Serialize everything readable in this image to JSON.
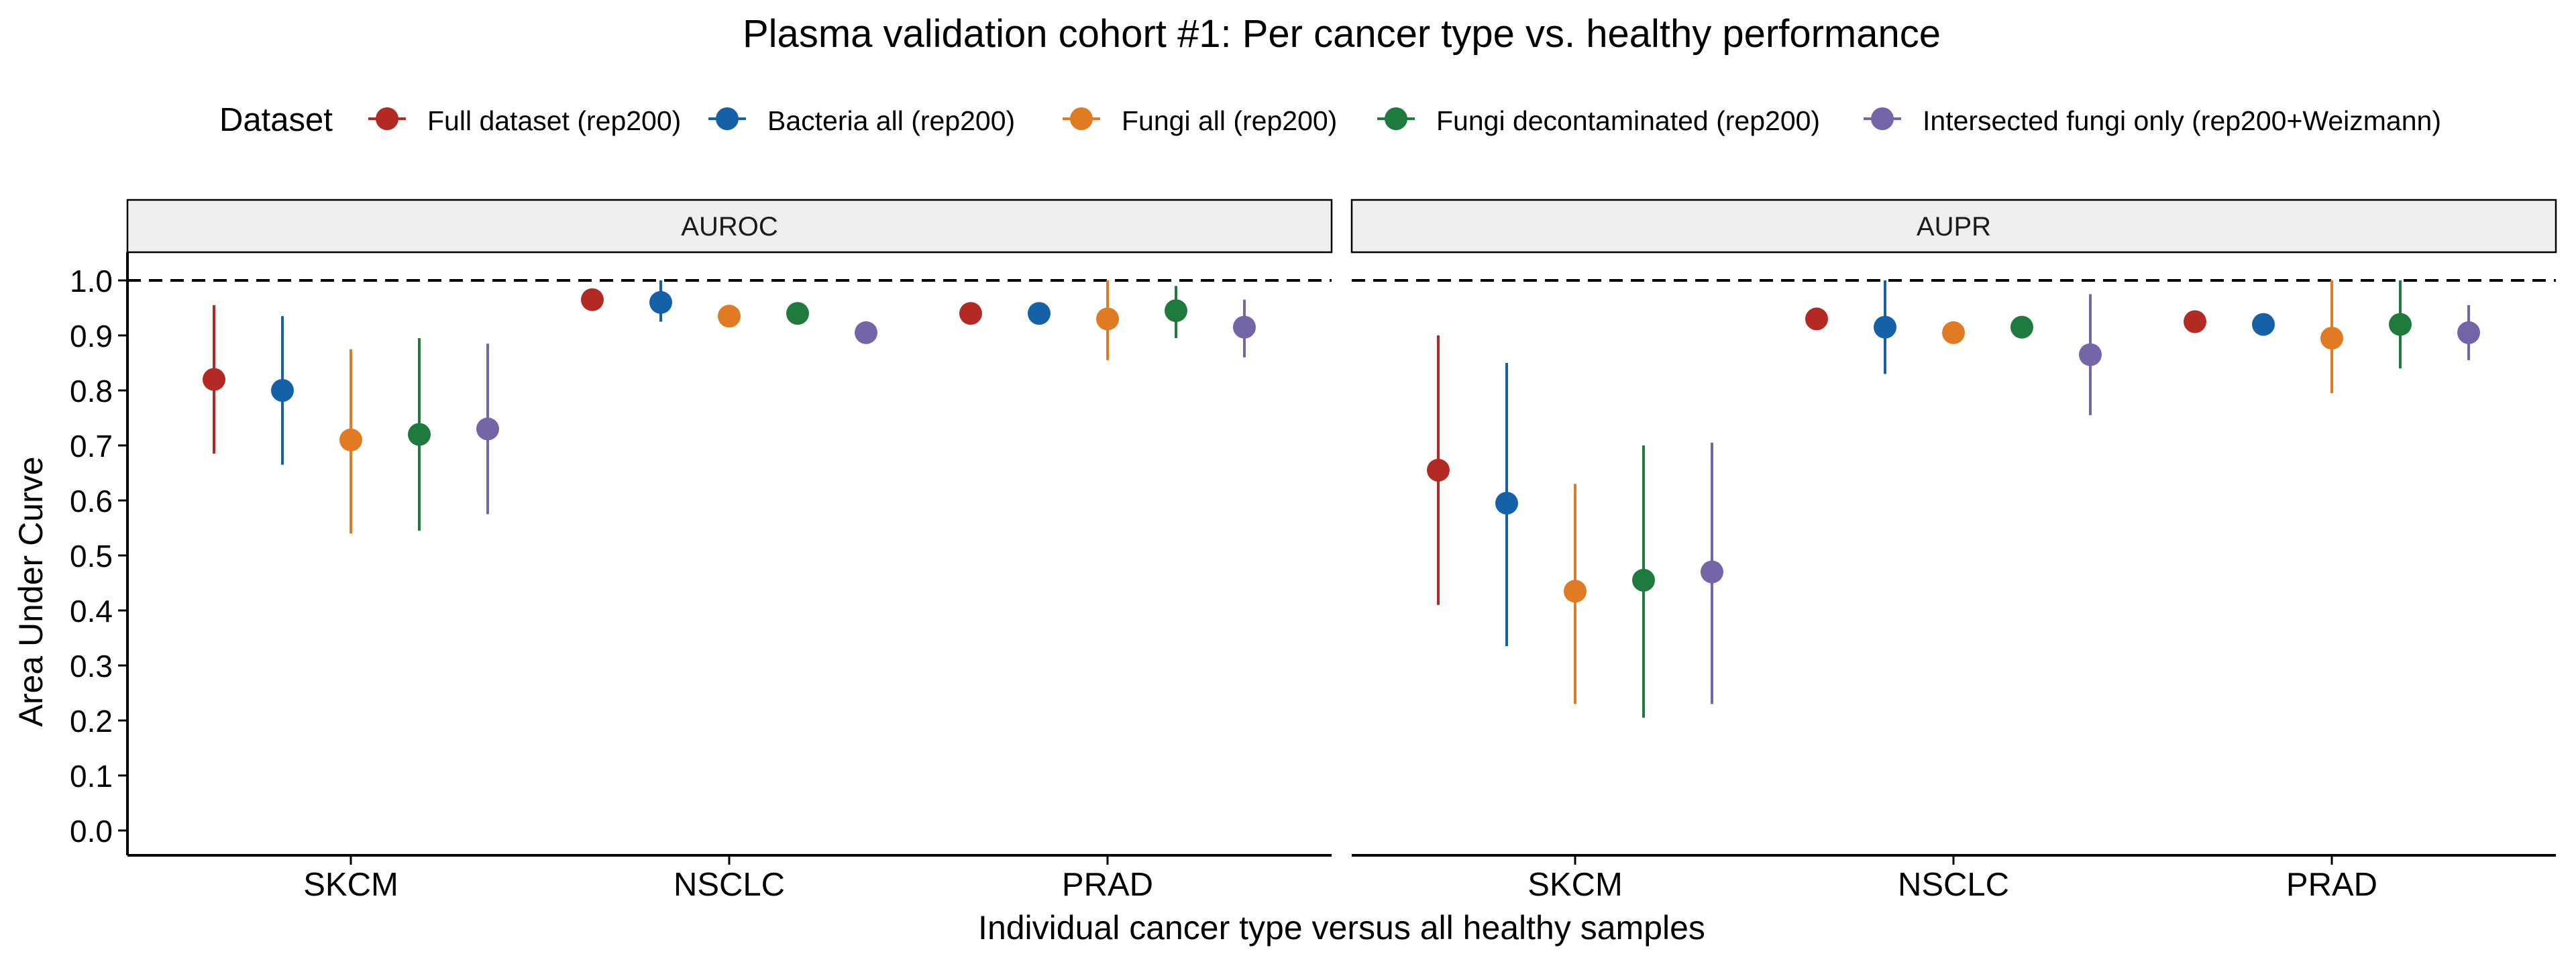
{
  "chart_data": {
    "type": "scatter",
    "title": "Plasma validation cohort #1: Per cancer type vs. healthy performance",
    "xlabel": "Individual cancer type versus all healthy samples",
    "ylabel": "Area Under Curve",
    "ylim": [
      0,
      1.0
    ],
    "y_ticks": [
      "0.0",
      "0.1",
      "0.2",
      "0.3",
      "0.4",
      "0.5",
      "0.6",
      "0.7",
      "0.8",
      "0.9",
      "1.0"
    ],
    "reference_line": 1.0,
    "legend_title": "Dataset",
    "legend_position": "top",
    "categories": [
      "SKCM",
      "NSCLC",
      "PRAD"
    ],
    "series": [
      {
        "name": "Full dataset (rep200)",
        "color": "#b22a23"
      },
      {
        "name": "Bacteria all (rep200)",
        "color": "#1561a8"
      },
      {
        "name": "Fungi all (rep200)",
        "color": "#e07b24"
      },
      {
        "name": "Fungi decontaminated (rep200)",
        "color": "#1e7a3d"
      },
      {
        "name": "Intersected fungi only (rep200+Weizmann)",
        "color": "#7465a8"
      }
    ],
    "panels": [
      {
        "label": "AUROC",
        "points": [
          [
            [
              0.82,
              0.685,
              0.955
            ],
            [
              0.8,
              0.665,
              0.935
            ],
            [
              0.71,
              0.54,
              0.875
            ],
            [
              0.72,
              0.545,
              0.895
            ],
            [
              0.73,
              0.575,
              0.885
            ]
          ],
          [
            [
              0.965,
              null,
              null
            ],
            [
              0.96,
              0.925,
              1.0
            ],
            [
              0.935,
              null,
              null
            ],
            [
              0.94,
              null,
              null
            ],
            [
              0.905,
              null,
              null
            ]
          ],
          [
            [
              0.94,
              null,
              null
            ],
            [
              0.94,
              null,
              null
            ],
            [
              0.93,
              0.855,
              1.0
            ],
            [
              0.945,
              0.895,
              0.99
            ],
            [
              0.915,
              0.86,
              0.965
            ]
          ]
        ]
      },
      {
        "label": "AUPR",
        "points": [
          [
            [
              0.655,
              0.41,
              0.9
            ],
            [
              0.595,
              0.335,
              0.85
            ],
            [
              0.435,
              0.23,
              0.63
            ],
            [
              0.455,
              0.205,
              0.7
            ],
            [
              0.47,
              0.23,
              0.705
            ]
          ],
          [
            [
              0.93,
              null,
              null
            ],
            [
              0.915,
              0.83,
              1.0
            ],
            [
              0.905,
              null,
              null
            ],
            [
              0.915,
              null,
              null
            ],
            [
              0.865,
              0.755,
              0.975
            ]
          ],
          [
            [
              0.925,
              null,
              null
            ],
            [
              0.92,
              null,
              null
            ],
            [
              0.895,
              0.795,
              1.0
            ],
            [
              0.92,
              0.84,
              1.0
            ],
            [
              0.905,
              0.855,
              0.955
            ]
          ]
        ]
      }
    ]
  }
}
